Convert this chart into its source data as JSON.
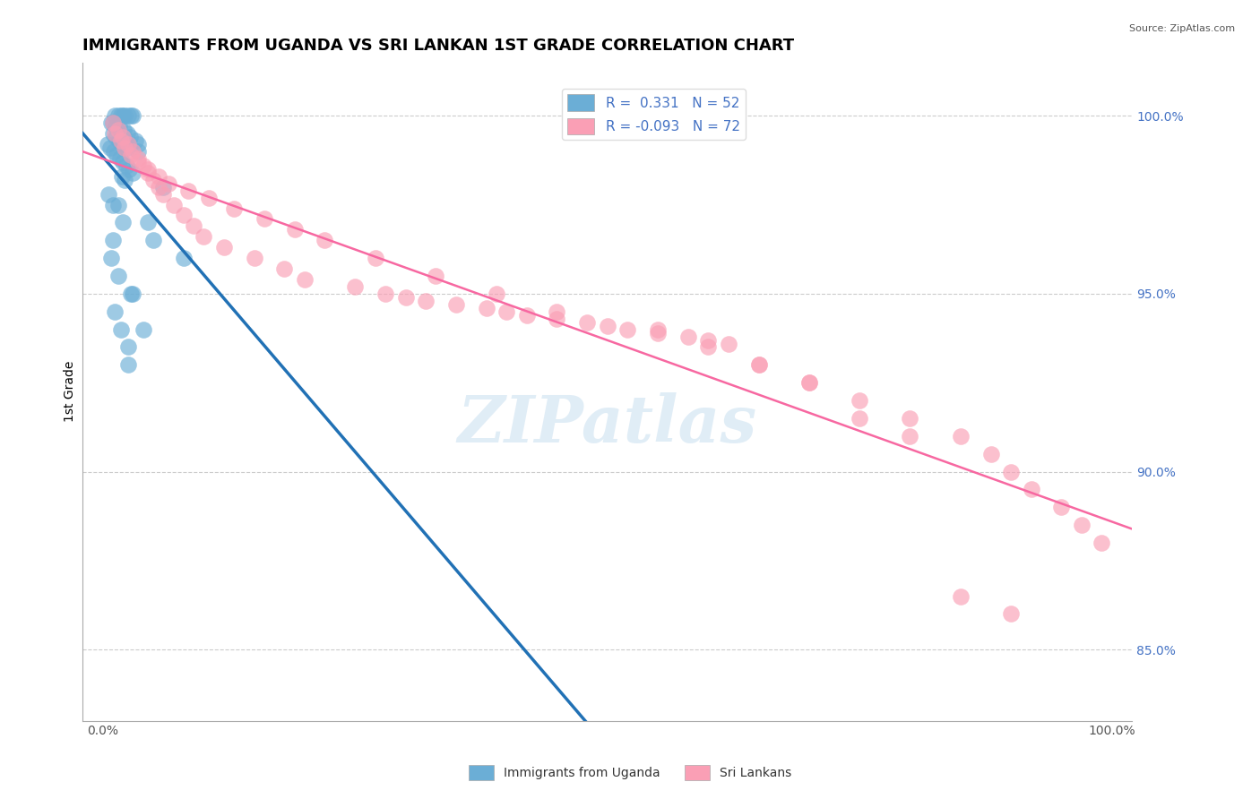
{
  "title": "IMMIGRANTS FROM UGANDA VS SRI LANKAN 1ST GRADE CORRELATION CHART",
  "source_text": "Source: ZipAtlas.com",
  "xlabel": "",
  "ylabel": "1st Grade",
  "watermark": "ZIPatlas",
  "x_ticks": [
    0.0,
    100.0
  ],
  "x_tick_labels": [
    "0.0%",
    "100.0%"
  ],
  "y_ticks": [
    85.0,
    90.0,
    95.0,
    100.0
  ],
  "y_tick_labels": [
    "85.0%",
    "90.0%",
    "95.0%",
    "100.0%"
  ],
  "y_min": 83.0,
  "y_max": 101.5,
  "x_min": -2.0,
  "x_max": 102.0,
  "legend_r1": "R =  0.331",
  "legend_n1": "N = 52",
  "legend_r2": "R = -0.093",
  "legend_n2": "N = 72",
  "blue_color": "#6baed6",
  "pink_color": "#fa9fb5",
  "blue_line_color": "#2171b5",
  "pink_line_color": "#f768a1",
  "tick_color": "#4472c4",
  "title_fontsize": 13,
  "axis_label_fontsize": 10,
  "tick_fontsize": 10,
  "blue_scatter": {
    "x": [
      1.2,
      1.5,
      1.8,
      2.0,
      2.2,
      2.5,
      2.8,
      3.0,
      0.8,
      1.0,
      1.3,
      1.6,
      2.1,
      2.4,
      2.7,
      3.2,
      3.5,
      0.5,
      0.7,
      1.1,
      1.4,
      1.7,
      2.0,
      2.3,
      2.6,
      3.0,
      1.9,
      2.2,
      0.6,
      1.0,
      4.5,
      5.0,
      8.0,
      1.5,
      2.8,
      1.2,
      1.8,
      2.5,
      1.0,
      1.3,
      1.6,
      2.0,
      2.4,
      3.5,
      6.0,
      1.5,
      2.0,
      1.0,
      0.8,
      3.0,
      4.0,
      2.5
    ],
    "y": [
      100.0,
      100.0,
      100.0,
      100.0,
      100.0,
      100.0,
      100.0,
      100.0,
      99.8,
      99.8,
      99.7,
      99.7,
      99.6,
      99.5,
      99.4,
      99.3,
      99.2,
      99.2,
      99.1,
      99.0,
      98.9,
      98.8,
      98.7,
      98.6,
      98.5,
      98.4,
      98.3,
      98.2,
      97.8,
      97.5,
      97.0,
      96.5,
      96.0,
      95.5,
      95.0,
      94.5,
      94.0,
      93.5,
      99.5,
      99.4,
      99.3,
      99.2,
      99.1,
      99.0,
      98.0,
      97.5,
      97.0,
      96.5,
      96.0,
      95.0,
      94.0,
      93.0
    ]
  },
  "pink_scatter": {
    "x": [
      1.0,
      1.5,
      2.0,
      2.5,
      3.0,
      3.5,
      4.0,
      4.5,
      5.0,
      5.5,
      6.0,
      7.0,
      8.0,
      9.0,
      10.0,
      12.0,
      15.0,
      18.0,
      20.0,
      25.0,
      28.0,
      30.0,
      32.0,
      35.0,
      38.0,
      40.0,
      42.0,
      45.0,
      48.0,
      50.0,
      52.0,
      55.0,
      58.0,
      60.0,
      62.0,
      1.2,
      1.8,
      2.2,
      2.8,
      3.5,
      4.5,
      5.5,
      6.5,
      8.5,
      10.5,
      13.0,
      16.0,
      19.0,
      22.0,
      27.0,
      33.0,
      39.0,
      45.0,
      55.0,
      60.0,
      65.0,
      70.0,
      75.0,
      80.0,
      85.0,
      88.0,
      90.0,
      92.0,
      95.0,
      97.0,
      99.0,
      85.0,
      90.0,
      65.0,
      70.0,
      75.0,
      80.0
    ],
    "y": [
      99.8,
      99.6,
      99.4,
      99.2,
      99.0,
      98.8,
      98.6,
      98.4,
      98.2,
      98.0,
      97.8,
      97.5,
      97.2,
      96.9,
      96.6,
      96.3,
      96.0,
      95.7,
      95.4,
      95.2,
      95.0,
      94.9,
      94.8,
      94.7,
      94.6,
      94.5,
      94.4,
      94.3,
      94.2,
      94.1,
      94.0,
      93.9,
      93.8,
      93.7,
      93.6,
      99.5,
      99.3,
      99.1,
      98.9,
      98.7,
      98.5,
      98.3,
      98.1,
      97.9,
      97.7,
      97.4,
      97.1,
      96.8,
      96.5,
      96.0,
      95.5,
      95.0,
      94.5,
      94.0,
      93.5,
      93.0,
      92.5,
      92.0,
      91.5,
      91.0,
      90.5,
      90.0,
      89.5,
      89.0,
      88.5,
      88.0,
      86.5,
      86.0,
      93.0,
      92.5,
      91.5,
      91.0
    ]
  }
}
